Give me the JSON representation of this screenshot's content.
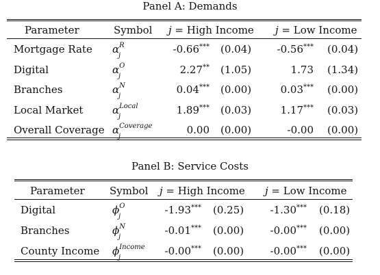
{
  "panel_a": {
    "title": "Panel A: Demands",
    "headers": {
      "parameter": "Parameter",
      "symbol": "Symbol",
      "group1": "j = High Income",
      "group2": "j = Low Income"
    },
    "rows": [
      {
        "param": "Mortgage Rate",
        "sym_base": "α",
        "sym_sup": "R",
        "sym_sub": "j",
        "v1": "-0.66",
        "s1": "***",
        "se1": "(0.04)",
        "v2": "-0.56",
        "s2": "***",
        "se2": "(0.04)"
      },
      {
        "param": "Digital",
        "sym_base": "α",
        "sym_sup": "O",
        "sym_sub": "j",
        "v1": "2.27",
        "s1": "**",
        "se1": "(1.05)",
        "v2": "1.73",
        "s2": "",
        "se2": "(1.34)"
      },
      {
        "param": "Branches",
        "sym_base": "α",
        "sym_sup": "N",
        "sym_sub": "j",
        "v1": "0.04",
        "s1": "***",
        "se1": "(0.00)",
        "v2": "0.03",
        "s2": "***",
        "se2": "(0.00)"
      },
      {
        "param": "Local Market",
        "sym_base": "α",
        "sym_sup": "Local",
        "sym_sub": "j",
        "v1": "1.89",
        "s1": "***",
        "se1": "(0.03)",
        "v2": "1.17",
        "s2": "***",
        "se2": "(0.03)"
      },
      {
        "param": "Overall Coverage",
        "sym_base": "α",
        "sym_sup": "Coverage",
        "sym_sub": "j",
        "v1": "0.00",
        "s1": "",
        "se1": "(0.00)",
        "v2": "-0.00",
        "s2": "",
        "se2": "(0.00)"
      }
    ]
  },
  "panel_b": {
    "title": "Panel B: Service Costs",
    "headers": {
      "parameter": "Parameter",
      "symbol": "Symbol",
      "group1": "j = High Income",
      "group2": "j = Low Income"
    },
    "rows": [
      {
        "param": "Digital",
        "sym_base": "ϕ",
        "sym_sup": "O",
        "sym_sub": "j",
        "v1": "-1.93",
        "s1": "***",
        "se1": "(0.25)",
        "v2": "-1.30",
        "s2": "***",
        "se2": "(0.18)"
      },
      {
        "param": "Branches",
        "sym_base": "ϕ",
        "sym_sup": "N",
        "sym_sub": "j",
        "v1": "-0.01",
        "s1": "***",
        "se1": "(0.00)",
        "v2": "-0.00",
        "s2": "***",
        "se2": "(0.00)"
      },
      {
        "param": "County Income",
        "sym_base": "ϕ",
        "sym_sup": "Income",
        "sym_sub": "j",
        "v1": "-0.00",
        "s1": "***",
        "se1": "(0.00)",
        "v2": "-0.00",
        "s2": "***",
        "se2": "(0.00)"
      }
    ]
  }
}
